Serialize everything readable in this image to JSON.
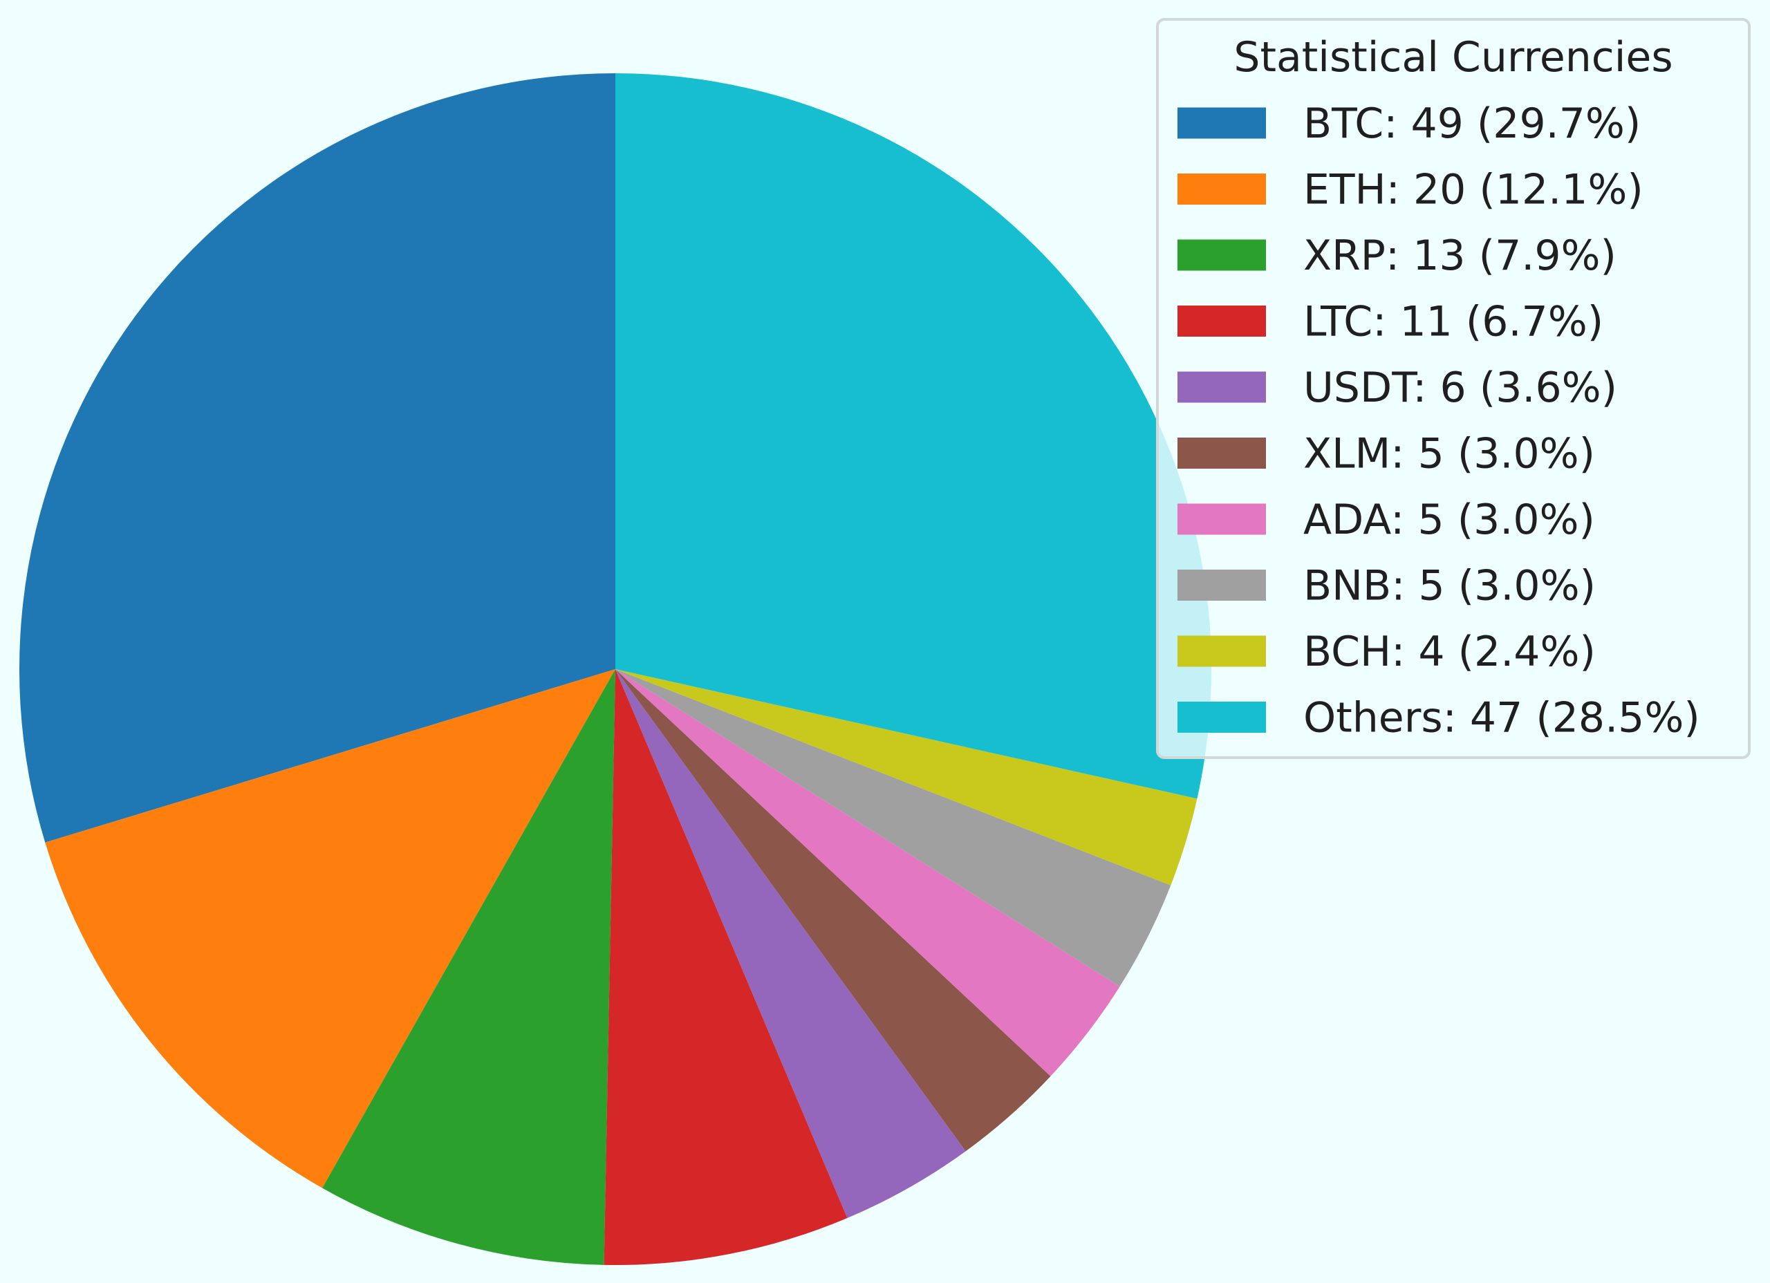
{
  "chart_data": {
    "type": "pie",
    "legend_title": "Statistical Currencies",
    "legend_position": "top-right",
    "start_angle_deg": 90,
    "direction": "counterclockwise",
    "slices": [
      {
        "label": "BTC",
        "value": 49,
        "percent": "29.7%",
        "color": "#1f77b4",
        "legend_text": "BTC: 49 (29.7%)"
      },
      {
        "label": "ETH",
        "value": 20,
        "percent": "12.1%",
        "color": "#ff7f0e",
        "legend_text": "ETH: 20 (12.1%)"
      },
      {
        "label": "XRP",
        "value": 13,
        "percent": "7.9%",
        "color": "#2ca02c",
        "legend_text": "XRP: 13 (7.9%)"
      },
      {
        "label": "LTC",
        "value": 11,
        "percent": "6.7%",
        "color": "#d62728",
        "legend_text": "LTC: 11 (6.7%)"
      },
      {
        "label": "USDT",
        "value": 6,
        "percent": "3.6%",
        "color": "#9467bd",
        "legend_text": "USDT: 6 (3.6%)"
      },
      {
        "label": "XLM",
        "value": 5,
        "percent": "3.0%",
        "color": "#8c564b",
        "legend_text": "XLM: 5 (3.0%)"
      },
      {
        "label": "ADA",
        "value": 5,
        "percent": "3.0%",
        "color": "#e377c2",
        "legend_text": "ADA: 5 (3.0%)"
      },
      {
        "label": "BNB",
        "value": 5,
        "percent": "3.0%",
        "color": "#a0a0a0",
        "legend_text": "BNB: 5 (3.0%)"
      },
      {
        "label": "BCH",
        "value": 4,
        "percent": "2.4%",
        "color": "#c9c81c",
        "legend_text": "BCH: 4 (2.4%)"
      },
      {
        "label": "Others",
        "value": 47,
        "percent": "28.5%",
        "color": "#17becf",
        "legend_text": "Others: 47 (28.5%)"
      }
    ]
  }
}
